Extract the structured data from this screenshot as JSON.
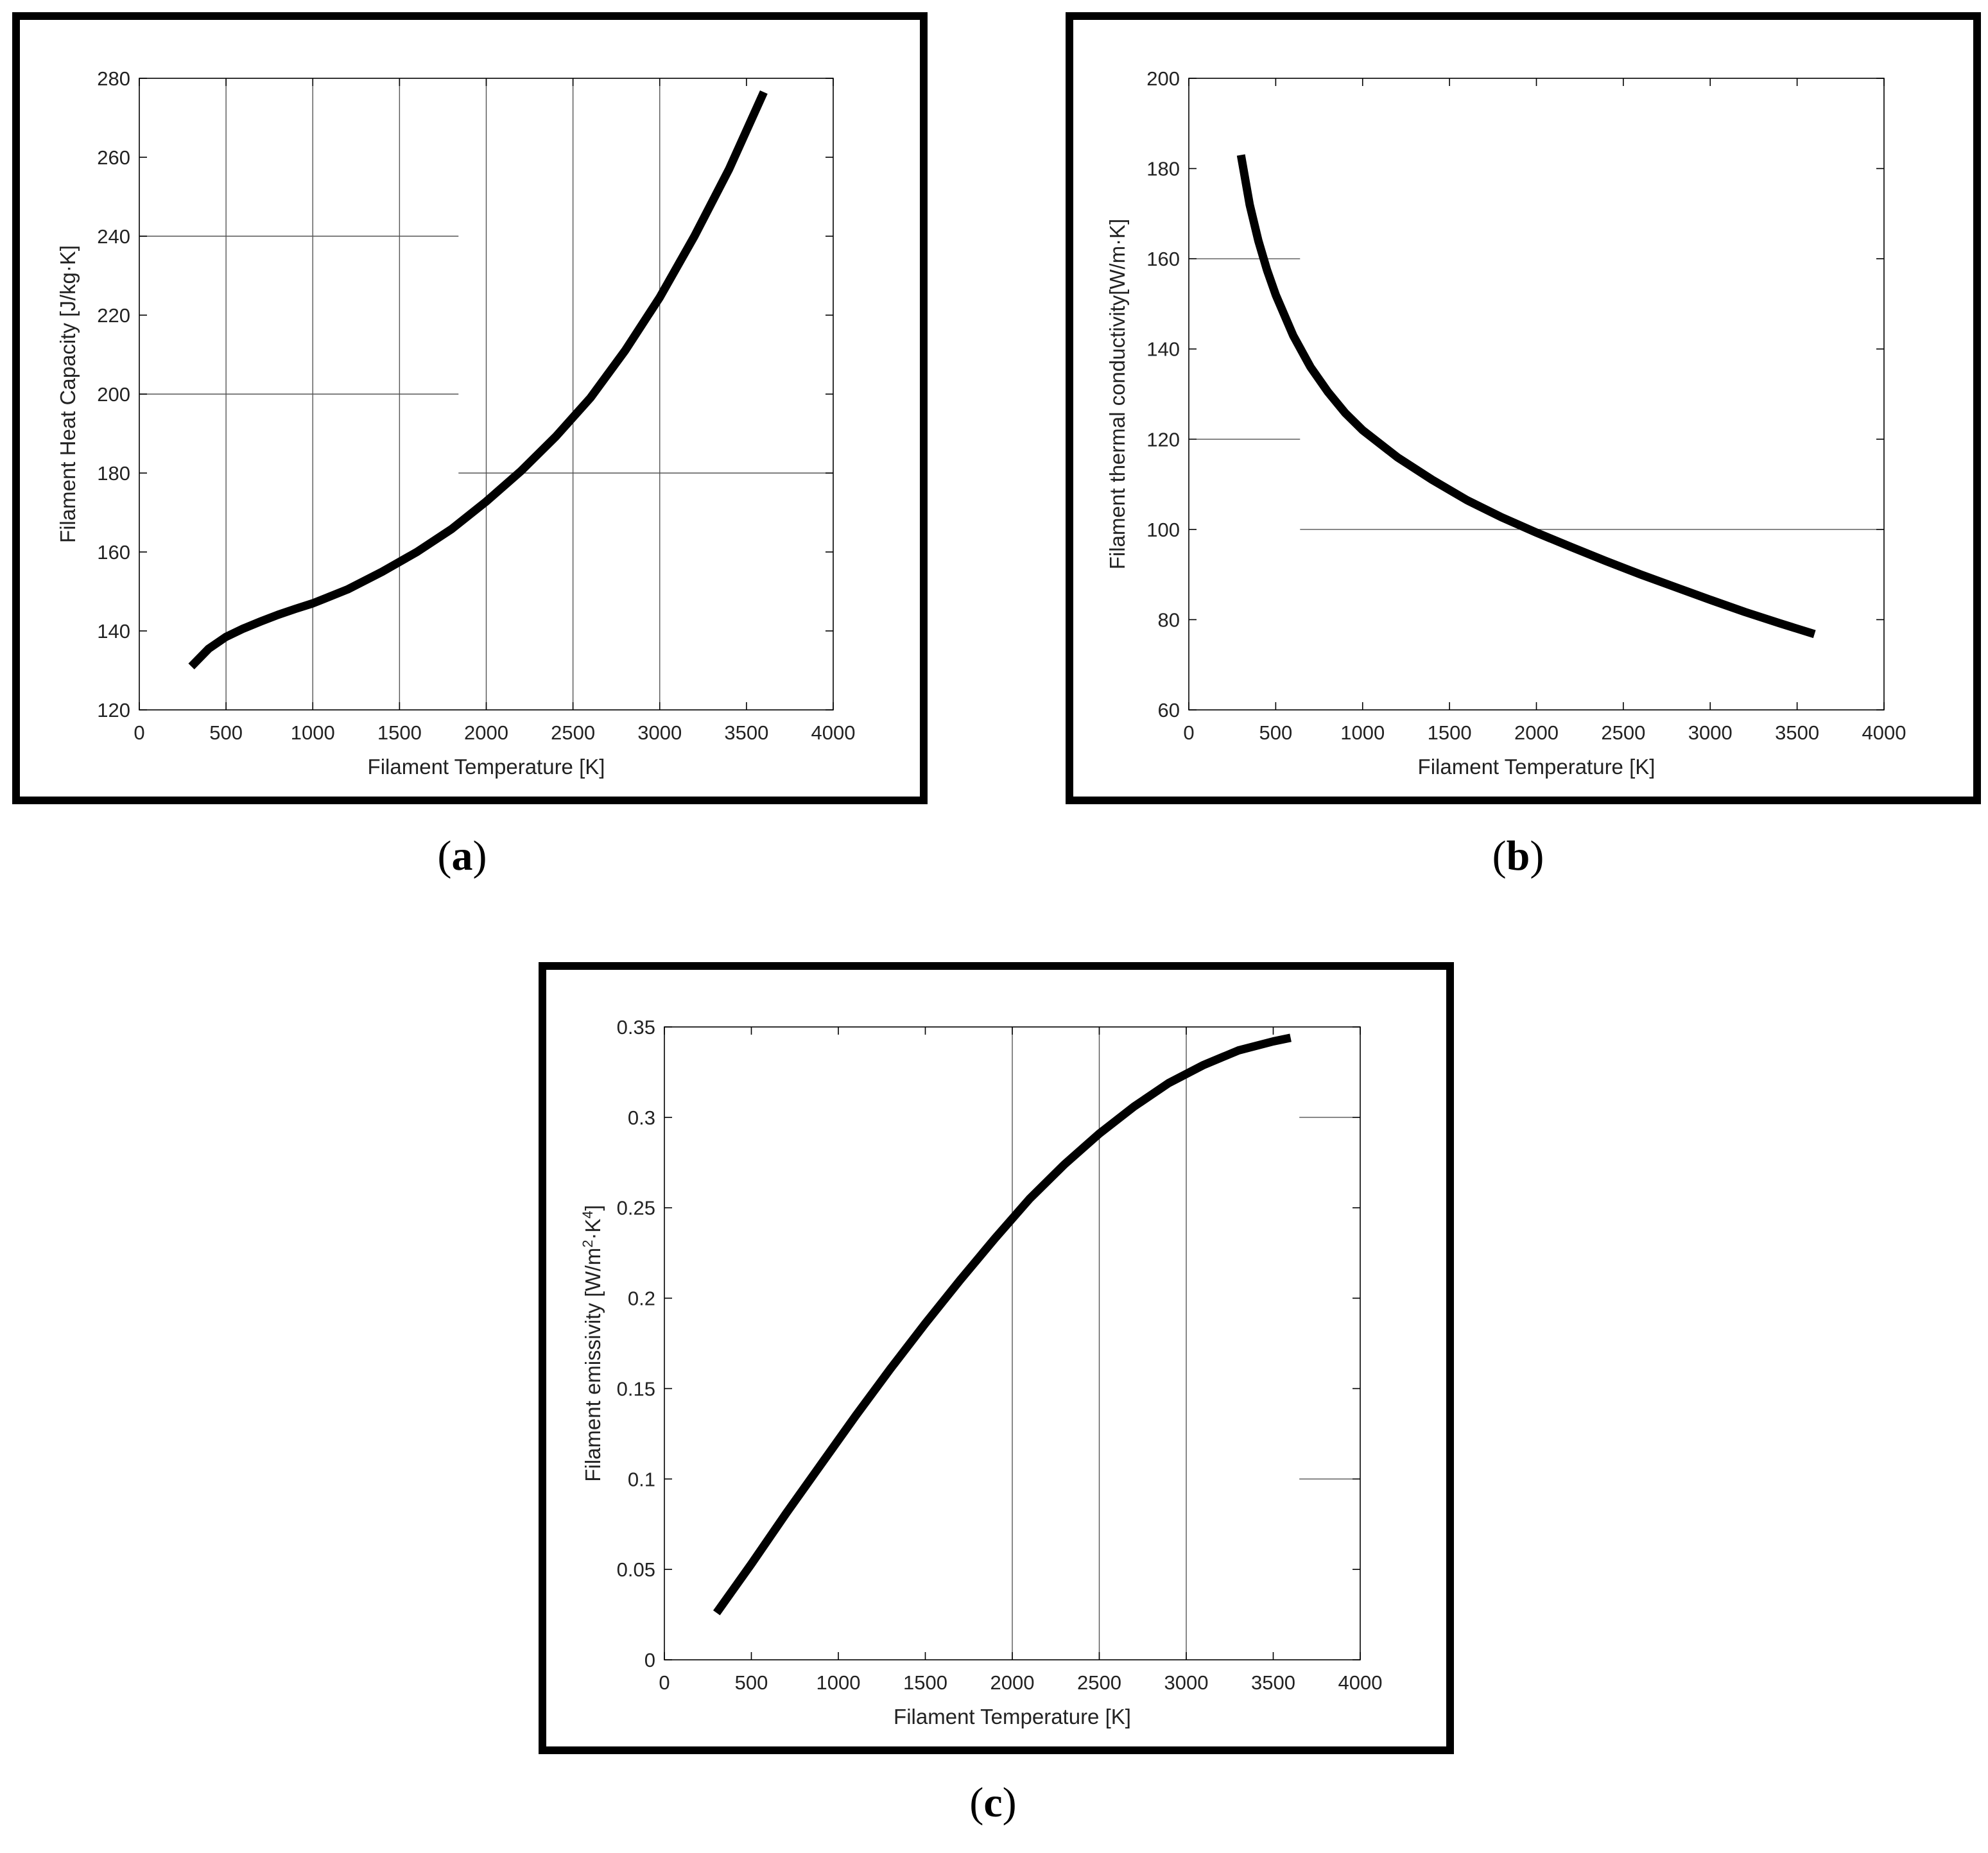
{
  "chart_data": [
    {
      "panel": "(a)",
      "panel_letter": "a",
      "type": "line",
      "xlabel": "Filament Temperature [K]",
      "ylabel": "Filament Heat Capacity [J/kg·K]",
      "xlim": [
        0,
        4000
      ],
      "ylim": [
        120,
        280
      ],
      "xticks": [
        0,
        500,
        1000,
        1500,
        2000,
        2500,
        3000,
        3500,
        4000
      ],
      "yticks": [
        120,
        140,
        160,
        180,
        200,
        220,
        240,
        260,
        280
      ],
      "vgrid": [
        500,
        1000,
        1500,
        2000,
        2500,
        3000
      ],
      "hgrid": [
        {
          "y": 240,
          "x0": 0,
          "x1": 1840
        },
        {
          "y": 200,
          "x0": 0,
          "x1": 1840
        },
        {
          "y": 180,
          "x0": 1840,
          "x1": 4000
        }
      ],
      "series": [
        {
          "x": [
            300,
            400,
            500,
            600,
            700,
            800,
            900,
            1000,
            1200,
            1400,
            1600,
            1800,
            2000,
            2200,
            2400,
            2600,
            2800,
            3000,
            3200,
            3400,
            3600
          ],
          "y": [
            131,
            135.5,
            138.5,
            140.6,
            142.4,
            144.1,
            145.6,
            147,
            150.5,
            155,
            160,
            165.8,
            172.8,
            180.5,
            189.2,
            199,
            211,
            224.5,
            240,
            257,
            276.5
          ]
        }
      ]
    },
    {
      "panel": "(b)",
      "panel_letter": "b",
      "type": "line",
      "xlabel": "Filament Temperature [K]",
      "ylabel": "Filament thermal conductivity[W/m·K]",
      "xlim": [
        0,
        4000
      ],
      "ylim": [
        60,
        200
      ],
      "xticks": [
        0,
        500,
        1000,
        1500,
        2000,
        2500,
        3000,
        3500,
        4000
      ],
      "yticks": [
        60,
        80,
        100,
        120,
        140,
        160,
        180,
        200
      ],
      "vgrid": [],
      "hgrid": [
        {
          "y": 160,
          "x0": 0,
          "x1": 640
        },
        {
          "y": 120,
          "x0": 0,
          "x1": 640
        },
        {
          "y": 100,
          "x0": 640,
          "x1": 4000
        }
      ],
      "series": [
        {
          "x": [
            300,
            350,
            400,
            450,
            500,
            600,
            700,
            800,
            900,
            1000,
            1200,
            1400,
            1600,
            1800,
            2000,
            2200,
            2400,
            2600,
            2800,
            3000,
            3200,
            3400,
            3600
          ],
          "y": [
            183,
            172,
            164,
            157.5,
            152,
            143,
            136,
            130.5,
            125.8,
            122,
            116,
            111,
            106.5,
            102.7,
            99.3,
            96.1,
            93,
            90,
            87.2,
            84.4,
            81.7,
            79.2,
            76.8
          ]
        }
      ]
    },
    {
      "panel": "(c)",
      "panel_letter": "c",
      "type": "line",
      "xlabel": "Filament Temperature [K]",
      "ylabel_parts": [
        "Filament emissivity [W/m",
        "2",
        "·K",
        "4",
        "]"
      ],
      "xlim": [
        0,
        4000
      ],
      "ylim": [
        0,
        0.35
      ],
      "xticks": [
        0,
        500,
        1000,
        1500,
        2000,
        2500,
        3000,
        3500,
        4000
      ],
      "yticks": [
        0,
        0.05,
        0.1,
        0.15,
        0.2,
        0.25,
        0.3,
        0.35
      ],
      "ytick_labels": [
        "0",
        "0.05",
        "0.1",
        "0.15",
        "0.2",
        "0.25",
        "0.3",
        "0.35"
      ],
      "vgrid": [
        2000,
        2500,
        3000
      ],
      "hgrid": [
        {
          "y": 0.3,
          "x0": 3650,
          "x1": 4000
        },
        {
          "y": 0.1,
          "x0": 3650,
          "x1": 4000
        }
      ],
      "series": [
        {
          "x": [
            300,
            500,
            700,
            900,
            1100,
            1300,
            1500,
            1700,
            1900,
            2100,
            2300,
            2500,
            2700,
            2900,
            3100,
            3300,
            3500,
            3600
          ],
          "y": [
            0.026,
            0.053,
            0.081,
            0.108,
            0.135,
            0.161,
            0.186,
            0.21,
            0.233,
            0.255,
            0.274,
            0.291,
            0.306,
            0.319,
            0.329,
            0.337,
            0.342,
            0.344
          ]
        }
      ]
    }
  ]
}
